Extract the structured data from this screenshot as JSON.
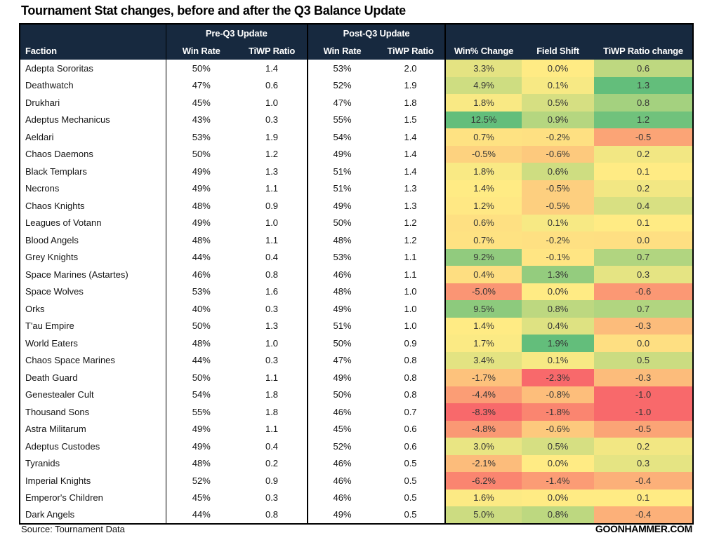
{
  "title": "Tournament Stat changes, before and after the Q3 Balance Update",
  "chart_data": {
    "type": "table",
    "title": "Tournament Stat changes, before and after the Q3 Balance Update",
    "group_headers": {
      "pre": "Pre-Q3 Update",
      "post": "Post-Q3 Update"
    },
    "columns": [
      "Faction",
      "Win Rate",
      "TiWP Ratio",
      "Win Rate",
      "TiWP Ratio",
      "Win% Change",
      "Field Shift",
      "TiWP Ratio change"
    ],
    "color_scale": {
      "min_red": "#F8696B",
      "mid_yellow": "#FFEB84",
      "max_green": "#63BE7B"
    },
    "rows": [
      {
        "faction": "Adepta Sororitas",
        "pre_win": "50%",
        "pre_tiwp": "1.4",
        "post_win": "53%",
        "post_tiwp": "2.0",
        "win_change": "3.3%",
        "field_shift": "0.0%",
        "tiwp_change": "0.6",
        "colors": [
          "#E4E382",
          "#FFEB84",
          "#BED880"
        ]
      },
      {
        "faction": "Deathwatch",
        "pre_win": "47%",
        "pre_tiwp": "0.6",
        "post_win": "52%",
        "post_tiwp": "1.9",
        "win_change": "4.9%",
        "field_shift": "0.1%",
        "tiwp_change": "1.3",
        "colors": [
          "#CEDD81",
          "#F7E984",
          "#63BE7B"
        ]
      },
      {
        "faction": "Drukhari",
        "pre_win": "45%",
        "pre_tiwp": "1.0",
        "post_win": "47%",
        "post_tiwp": "1.8",
        "win_change": "1.8%",
        "field_shift": "0.5%",
        "tiwp_change": "0.8",
        "colors": [
          "#F9E984",
          "#D6DF82",
          "#A4D17F"
        ]
      },
      {
        "faction": "Adeptus Mechanicus",
        "pre_win": "43%",
        "pre_tiwp": "0.3",
        "post_win": "55%",
        "post_tiwp": "1.5",
        "win_change": "12.5%",
        "field_shift": "0.9%",
        "tiwp_change": "1.2",
        "colors": [
          "#63BE7B",
          "#B5D680",
          "#70C27C"
        ]
      },
      {
        "faction": "Aeldari",
        "pre_win": "53%",
        "pre_tiwp": "1.9",
        "post_win": "54%",
        "post_tiwp": "1.4",
        "win_change": "0.7%",
        "field_shift": "-0.2%",
        "tiwp_change": "-0.5",
        "colors": [
          "#FEE282",
          "#FEE082",
          "#FBA476"
        ]
      },
      {
        "faction": "Chaos Daemons",
        "pre_win": "50%",
        "pre_tiwp": "1.2",
        "post_win": "49%",
        "post_tiwp": "1.4",
        "win_change": "-0.5%",
        "field_shift": "-0.6%",
        "tiwp_change": "0.2",
        "colors": [
          "#FDD27F",
          "#FDC97D",
          "#F2E783"
        ]
      },
      {
        "faction": "Black Templars",
        "pre_win": "49%",
        "pre_tiwp": "1.3",
        "post_win": "51%",
        "post_tiwp": "1.4",
        "win_change": "1.8%",
        "field_shift": "0.6%",
        "tiwp_change": "0.1",
        "colors": [
          "#F9E984",
          "#CEDD81",
          "#FFEB84"
        ]
      },
      {
        "faction": "Necrons",
        "pre_win": "49%",
        "pre_tiwp": "1.1",
        "post_win": "51%",
        "post_tiwp": "1.3",
        "win_change": "1.4%",
        "field_shift": "-0.5%",
        "tiwp_change": "0.2",
        "colors": [
          "#FFEB84",
          "#FDCF7F",
          "#F2E783"
        ]
      },
      {
        "faction": "Chaos Knights",
        "pre_win": "48%",
        "pre_tiwp": "0.9",
        "post_win": "49%",
        "post_tiwp": "1.3",
        "win_change": "1.2%",
        "field_shift": "-0.5%",
        "tiwp_change": "0.4",
        "colors": [
          "#FFE884",
          "#FDCF7F",
          "#D8E082"
        ]
      },
      {
        "faction": "Leagues of Votann",
        "pre_win": "49%",
        "pre_tiwp": "1.0",
        "post_win": "50%",
        "post_tiwp": "1.2",
        "win_change": "0.6%",
        "field_shift": "0.1%",
        "tiwp_change": "0.1",
        "colors": [
          "#FEE082",
          "#F7E984",
          "#FFEB84"
        ]
      },
      {
        "faction": "Blood Angels",
        "pre_win": "48%",
        "pre_tiwp": "1.1",
        "post_win": "48%",
        "post_tiwp": "1.2",
        "win_change": "0.7%",
        "field_shift": "-0.2%",
        "tiwp_change": "0.0",
        "colors": [
          "#FEE282",
          "#FEE082",
          "#FEDF82"
        ]
      },
      {
        "faction": "Grey Knights",
        "pre_win": "44%",
        "pre_tiwp": "0.4",
        "post_win": "53%",
        "post_tiwp": "1.1",
        "win_change": "9.2%",
        "field_shift": "-0.1%",
        "tiwp_change": "0.7",
        "colors": [
          "#91CB7E",
          "#FFE583",
          "#B1D580"
        ]
      },
      {
        "faction": "Space Marines (Astartes)",
        "pre_win": "46%",
        "pre_tiwp": "0.8",
        "post_win": "46%",
        "post_tiwp": "1.1",
        "win_change": "0.4%",
        "field_shift": "1.3%",
        "tiwp_change": "0.3",
        "colors": [
          "#FEDE81",
          "#94CC7E",
          "#E5E483"
        ]
      },
      {
        "faction": "Space Wolves",
        "pre_win": "53%",
        "pre_tiwp": "1.6",
        "post_win": "48%",
        "post_tiwp": "1.0",
        "win_change": "-5.0%",
        "field_shift": "0.0%",
        "tiwp_change": "-0.6",
        "colors": [
          "#FA9574",
          "#FFEB84",
          "#FB9874"
        ]
      },
      {
        "faction": "Orks",
        "pre_win": "40%",
        "pre_tiwp": "0.3",
        "post_win": "49%",
        "post_tiwp": "1.0",
        "win_change": "9.5%",
        "field_shift": "0.8%",
        "tiwp_change": "0.7",
        "colors": [
          "#8DCA7D",
          "#BDD880",
          "#B1D580"
        ]
      },
      {
        "faction": "T'au Empire",
        "pre_win": "50%",
        "pre_tiwp": "1.3",
        "post_win": "51%",
        "post_tiwp": "1.0",
        "win_change": "1.4%",
        "field_shift": "0.4%",
        "tiwp_change": "-0.3",
        "colors": [
          "#FFEB84",
          "#DEE282",
          "#FCBC7B"
        ]
      },
      {
        "faction": "World Eaters",
        "pre_win": "48%",
        "pre_tiwp": "1.0",
        "post_win": "50%",
        "post_tiwp": "0.9",
        "win_change": "1.7%",
        "field_shift": "1.9%",
        "tiwp_change": "0.0",
        "colors": [
          "#FBEA84",
          "#63BE7B",
          "#FEDF82"
        ]
      },
      {
        "faction": "Chaos Space Marines",
        "pre_win": "44%",
        "pre_tiwp": "0.3",
        "post_win": "47%",
        "post_tiwp": "0.8",
        "win_change": "3.4%",
        "field_shift": "0.1%",
        "tiwp_change": "0.5",
        "colors": [
          "#E3E382",
          "#F7E984",
          "#CBDC81"
        ]
      },
      {
        "faction": "Death Guard",
        "pre_win": "50%",
        "pre_tiwp": "1.1",
        "post_win": "49%",
        "post_tiwp": "0.8",
        "win_change": "-1.7%",
        "field_shift": "-2.3%",
        "tiwp_change": "-0.3",
        "colors": [
          "#FDC27C",
          "#F8696B",
          "#FCBC7B"
        ]
      },
      {
        "faction": "Genestealer Cult",
        "pre_win": "54%",
        "pre_tiwp": "1.8",
        "post_win": "50%",
        "post_tiwp": "0.8",
        "win_change": "-4.4%",
        "field_shift": "-0.8%",
        "tiwp_change": "-1.0",
        "colors": [
          "#FB9D75",
          "#FDBE7B",
          "#F8696B"
        ]
      },
      {
        "faction": "Thousand Sons",
        "pre_win": "55%",
        "pre_tiwp": "1.8",
        "post_win": "46%",
        "post_tiwp": "0.7",
        "win_change": "-8.3%",
        "field_shift": "-1.8%",
        "tiwp_change": "-1.0",
        "colors": [
          "#F8696B",
          "#FA8570",
          "#F8696B"
        ]
      },
      {
        "faction": "Astra Militarum",
        "pre_win": "49%",
        "pre_tiwp": "1.1",
        "post_win": "45%",
        "post_tiwp": "0.6",
        "win_change": "-4.8%",
        "field_shift": "-0.6%",
        "tiwp_change": "-0.5",
        "colors": [
          "#FA9874",
          "#FDC97D",
          "#FBA476"
        ]
      },
      {
        "faction": "Adeptus Custodes",
        "pre_win": "49%",
        "pre_tiwp": "0.4",
        "post_win": "52%",
        "post_tiwp": "0.6",
        "win_change": "3.0%",
        "field_shift": "0.5%",
        "tiwp_change": "0.2",
        "colors": [
          "#E9E583",
          "#D6DF82",
          "#F2E783"
        ]
      },
      {
        "faction": "Tyranids",
        "pre_win": "48%",
        "pre_tiwp": "0.2",
        "post_win": "46%",
        "post_tiwp": "0.5",
        "win_change": "-2.1%",
        "field_shift": "0.0%",
        "tiwp_change": "0.3",
        "colors": [
          "#FCBC7B",
          "#FFEB84",
          "#E5E483"
        ]
      },
      {
        "faction": "Imperial Knights",
        "pre_win": "52%",
        "pre_tiwp": "0.9",
        "post_win": "46%",
        "post_tiwp": "0.5",
        "win_change": "-6.2%",
        "field_shift": "-1.4%",
        "tiwp_change": "-0.4",
        "colors": [
          "#FA8570",
          "#FB9C75",
          "#FCB079"
        ]
      },
      {
        "faction": "Emperor's Children",
        "pre_win": "45%",
        "pre_tiwp": "0.3",
        "post_win": "46%",
        "post_tiwp": "0.5",
        "win_change": "1.6%",
        "field_shift": "0.0%",
        "tiwp_change": "0.1",
        "colors": [
          "#FCEA84",
          "#FFEB84",
          "#FFEB84"
        ]
      },
      {
        "faction": "Dark Angels",
        "pre_win": "44%",
        "pre_tiwp": "0.8",
        "post_win": "49%",
        "post_tiwp": "0.5",
        "win_change": "5.0%",
        "field_shift": "0.8%",
        "tiwp_change": "-0.4",
        "colors": [
          "#CCDC81",
          "#BDD880",
          "#FCB079"
        ]
      }
    ]
  },
  "footer": {
    "source": "Source: Tournament Data",
    "brand": "GOONHAMMER.COM"
  },
  "theme": {
    "header_bg": "#17293F",
    "header_text": "#FFFFFF",
    "border": "#000000",
    "cell_text": "#353535"
  }
}
